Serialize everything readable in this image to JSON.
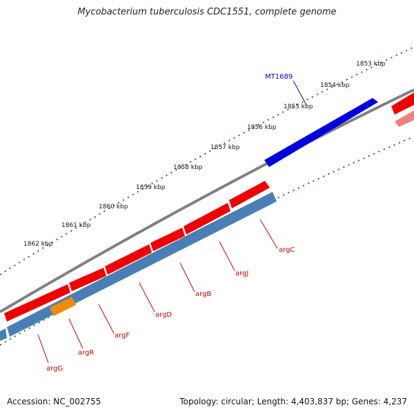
{
  "title": "Mycobacterium tuberculosis CDC1551, complete genome",
  "footer": {
    "accession": "Accession: NC_002755",
    "summary": "Topology: circular; Length: 4,403,837 bp; Genes: 4,237"
  },
  "kbp_labels": [
    "1853 kbp",
    "1854 kbp",
    "1855 kbp",
    "1856 kbp",
    "1857 kbp",
    "1858 kbp",
    "1859 kbp",
    "1860 kbp",
    "1861 kbp",
    "1862 kbp"
  ],
  "gene_labels": {
    "mt1689": "MT1689",
    "argC": "argC",
    "argJ": "argJ",
    "argB": "argB",
    "argD": "argD",
    "argF": "argF",
    "argR": "argR",
    "argG": "argG"
  },
  "colors": {
    "forward_gene": "#ee0000",
    "forward_gene_light": "#f08080",
    "reverse_gene": "#4a7fb5",
    "highlight_gene": "#f08c00",
    "mt1689_gene": "#0000dd",
    "backbone": "#808080",
    "tick": "#1a7a1a"
  }
}
